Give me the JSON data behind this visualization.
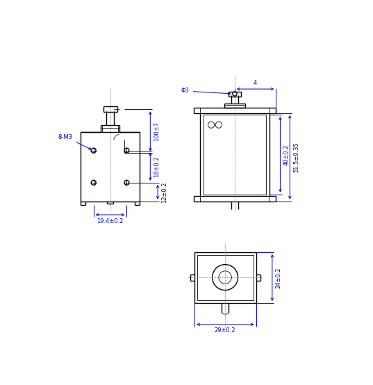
{
  "line_color": "#000000",
  "dim_color": "#0000cc",
  "center_color": "#888888",
  "bg_color": "#ffffff",
  "lw": 1.0,
  "tlw": 0.6,
  "dlw": 0.7,
  "dim_100_7": "100±7",
  "dim_18_02": "18±0.2",
  "dim_12_02": "12±0.2",
  "dim_19_4_02": "19.4±0.2",
  "dim_8_M3": "8-M3",
  "dim_phi3": "Φ3",
  "dim_4": "4",
  "dim_40_02": "40±0.2",
  "dim_51_5_035": "51.5±0.35",
  "dim_24_02": "24±0.2",
  "dim_29_02": "29±0.2"
}
